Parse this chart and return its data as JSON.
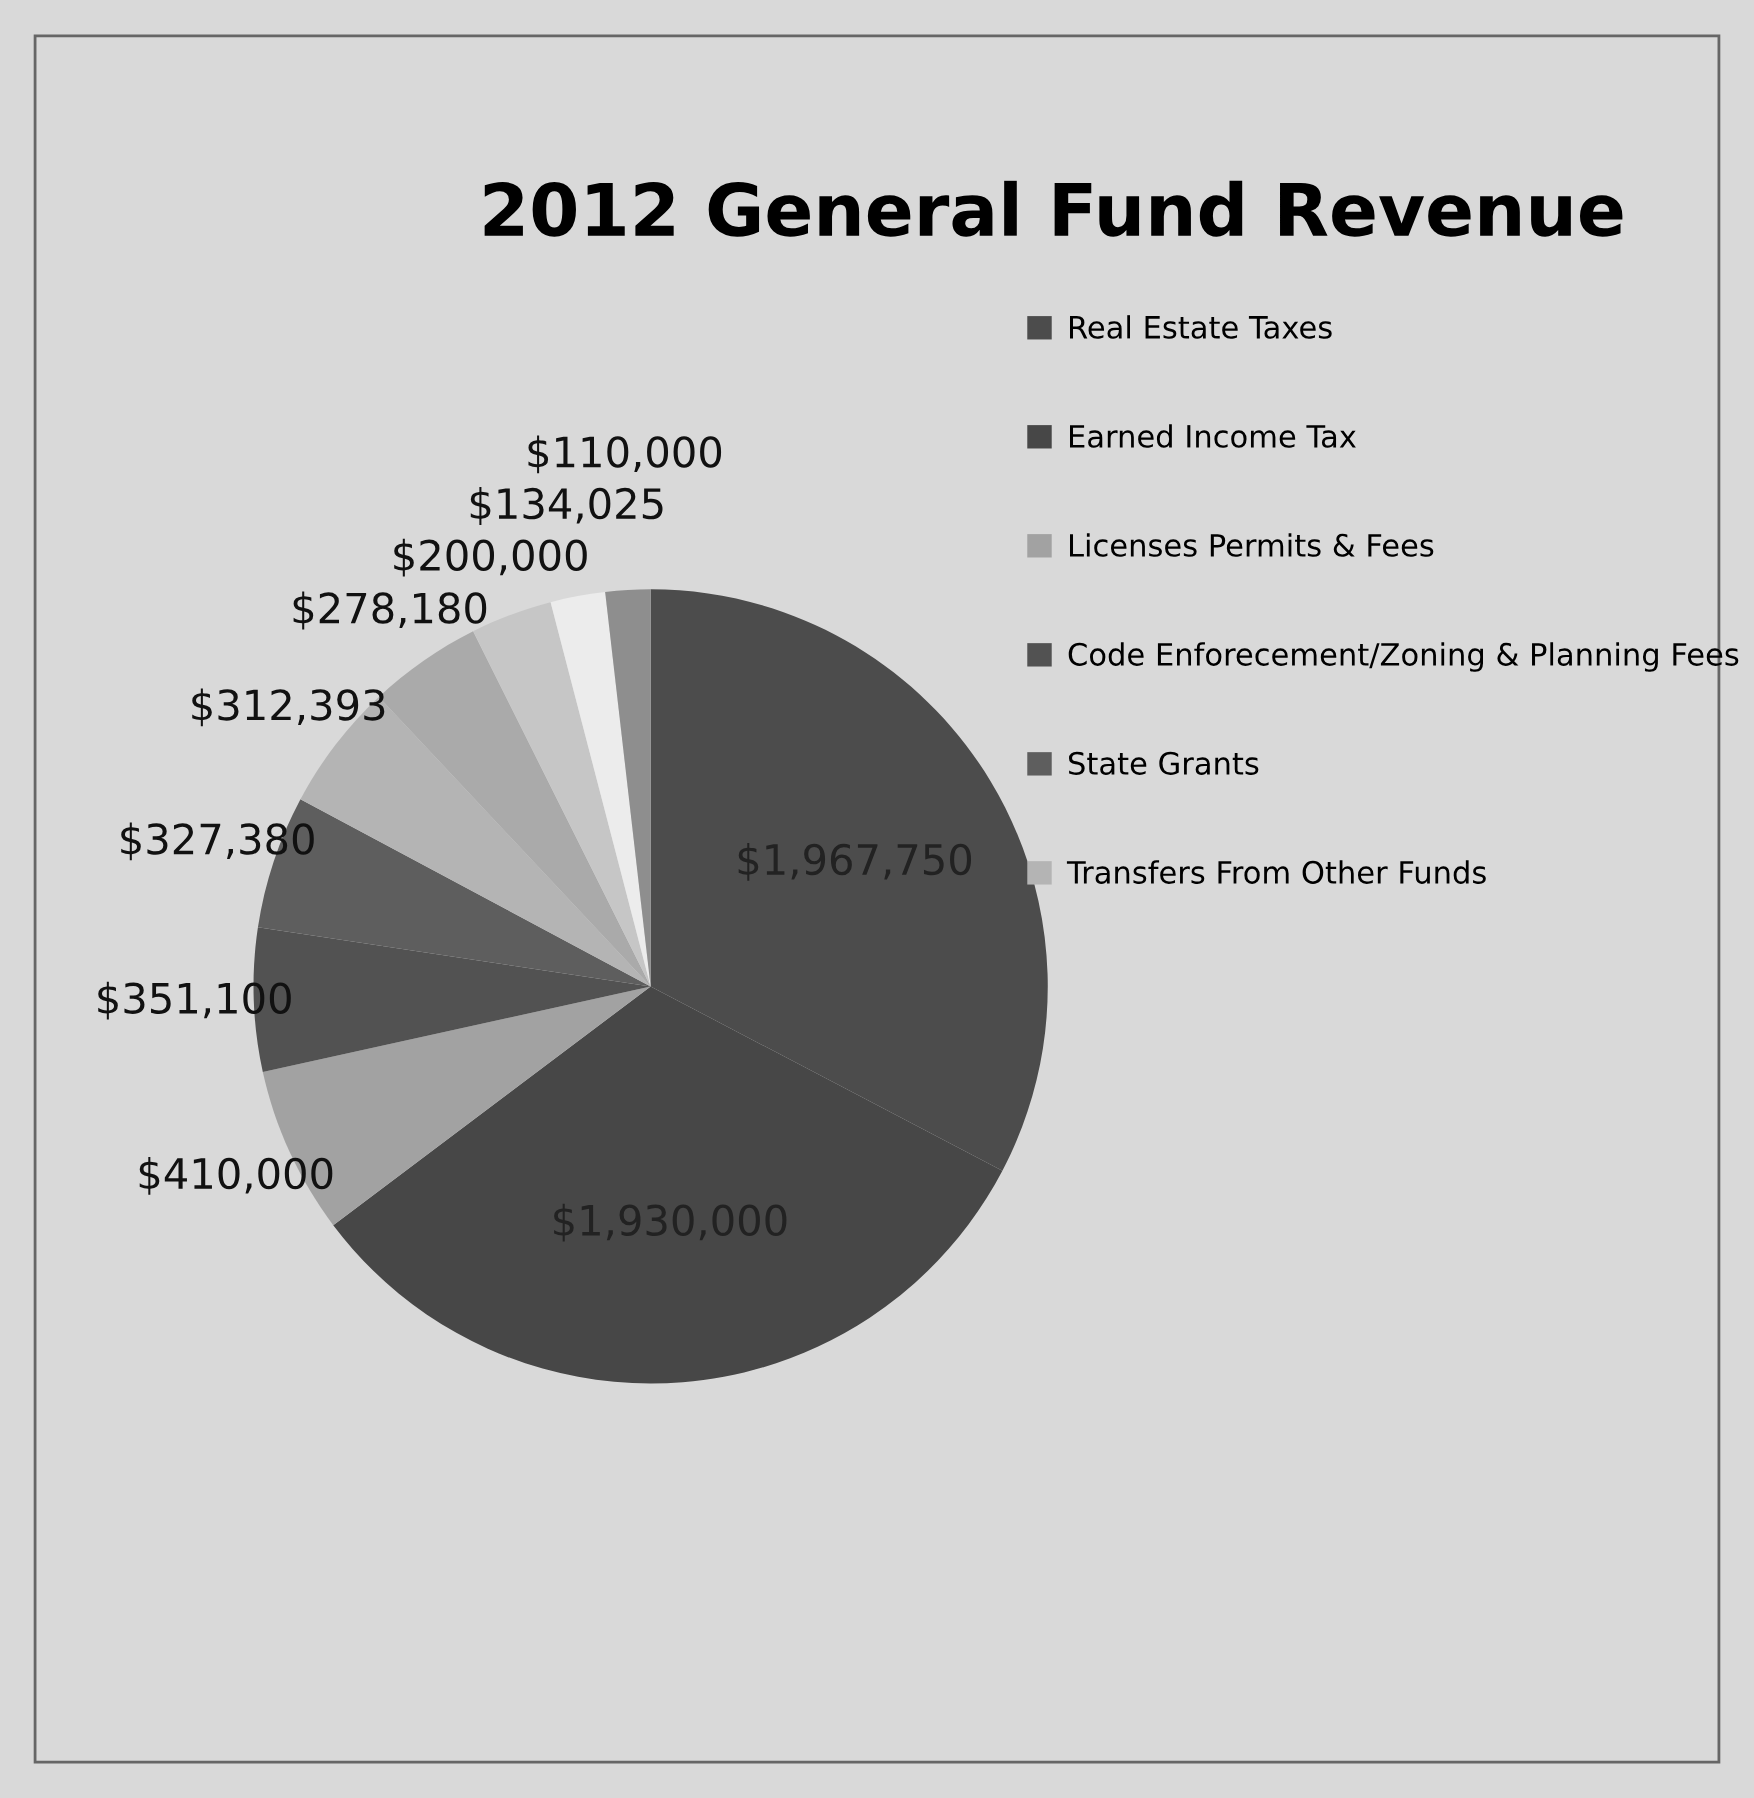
{
  "chart_data": {
    "type": "pie",
    "title": "2012 General Fund Revenue",
    "categories": [
      "Real Estate Taxes",
      "Earned Income Tax",
      "Licenses Permits & Fees",
      "Code Enforecement/Zoning & Planning Fees",
      "State Grants",
      "Transfers From Other Funds",
      null,
      null,
      null,
      null
    ],
    "values": [
      1967750,
      1930000,
      410000,
      351100,
      327380,
      312393,
      278180,
      200000,
      134025,
      110000
    ],
    "colors": [
      "#4c4c4c",
      "#474747",
      "#a2a2a2",
      "#525252",
      "#5e5e5e",
      "#b4b4b4",
      "#aaaaaa",
      "#c6c6c6",
      "#ececec",
      "#8e8e8e"
    ],
    "value_labels": [
      "$1,967,750",
      "$1,930,000",
      "$410,000",
      "$351,100",
      "$327,380",
      "$312,393",
      "$278,180",
      "$200,000",
      "$134,025",
      "$110,000"
    ],
    "legend": "right"
  }
}
